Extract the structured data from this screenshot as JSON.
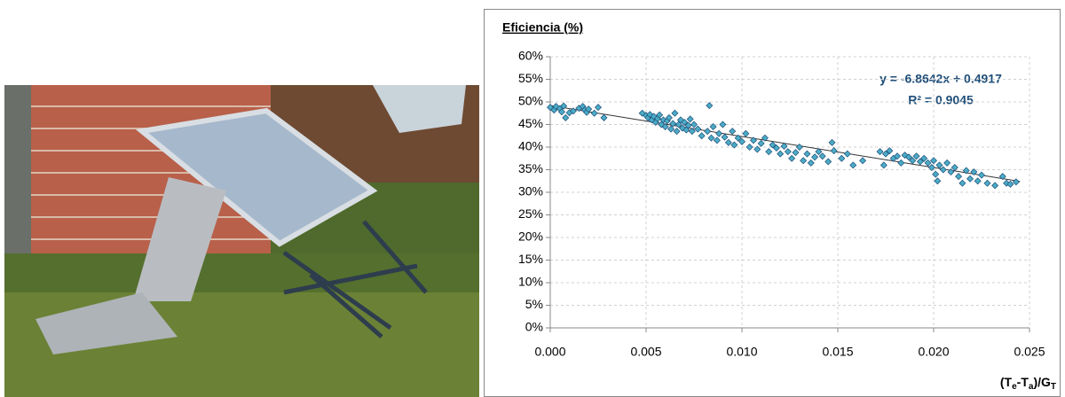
{
  "chart_data": {
    "type": "scatter",
    "title": "Eficiencia (%)",
    "x_label": [
      "(T",
      "e",
      "-T",
      "a",
      ")/G",
      "T"
    ],
    "annotations": [
      "y = -6.8642x + 0.4917",
      "R² = 0.9045"
    ],
    "color": "#4bacc6",
    "edge_color": "#1f4e79",
    "grid": true,
    "xlim": [
      0,
      0.025
    ],
    "ylim": [
      0,
      60
    ],
    "xticks": [
      {
        "value": 0,
        "label": "0.000"
      },
      0.005,
      {
        "value": 0.01,
        "label": "0.010"
      },
      0.015,
      {
        "value": 0.02,
        "label": "0.020"
      },
      0.025
    ],
    "yticks": [
      {
        "value": 0,
        "label": "0%"
      },
      {
        "value": 5,
        "label": "5%"
      },
      {
        "value": 10,
        "label": "10%"
      },
      {
        "value": 15,
        "label": "15%"
      },
      {
        "value": 20,
        "label": "20%"
      },
      {
        "value": 25,
        "label": "25%"
      },
      {
        "value": 30,
        "label": "30%"
      },
      {
        "value": 35,
        "label": "35%"
      },
      {
        "value": 40,
        "label": "40%"
      },
      {
        "value": 45,
        "label": "45%"
      },
      {
        "value": 50,
        "label": "50%"
      },
      {
        "value": 55,
        "label": "55%"
      },
      {
        "value": 60,
        "label": "60%"
      }
    ],
    "trendline": {
      "x": [
        0,
        0.0245
      ],
      "values": [
        49.2,
        32.4
      ]
    },
    "x": [
      0.0,
      0.0002,
      0.0003,
      0.0005,
      0.0006,
      0.0007,
      0.0008,
      0.001,
      0.0012,
      0.0015,
      0.0017,
      0.0018,
      0.0019,
      0.002,
      0.0023,
      0.0025,
      0.0028,
      0.0048,
      0.005,
      0.0051,
      0.0052,
      0.0053,
      0.0054,
      0.0055,
      0.0056,
      0.0057,
      0.0058,
      0.0059,
      0.006,
      0.0061,
      0.0062,
      0.0063,
      0.0064,
      0.0065,
      0.0066,
      0.0067,
      0.0068,
      0.0069,
      0.007,
      0.0071,
      0.0072,
      0.0073,
      0.0074,
      0.0075,
      0.0077,
      0.0079,
      0.0083,
      0.0082,
      0.0084,
      0.0085,
      0.0087,
      0.0088,
      0.009,
      0.0091,
      0.0093,
      0.0095,
      0.0096,
      0.0098,
      0.01,
      0.0102,
      0.0104,
      0.0106,
      0.0108,
      0.011,
      0.0112,
      0.0114,
      0.0116,
      0.0118,
      0.012,
      0.0122,
      0.0124,
      0.0126,
      0.0128,
      0.013,
      0.0132,
      0.0134,
      0.0136,
      0.0138,
      0.014,
      0.0142,
      0.0145,
      0.0147,
      0.0148,
      0.0152,
      0.0155,
      0.0158,
      0.0163,
      0.0172,
      0.0174,
      0.0175,
      0.0177,
      0.0179,
      0.0181,
      0.0183,
      0.0185,
      0.0187,
      0.0189,
      0.0191,
      0.0193,
      0.0195,
      0.0197,
      0.0199,
      0.02,
      0.0201,
      0.0202,
      0.0203,
      0.0205,
      0.0207,
      0.0209,
      0.0211,
      0.0213,
      0.0215,
      0.0217,
      0.0219,
      0.0221,
      0.0223,
      0.0225,
      0.0228,
      0.0232,
      0.0236,
      0.0238,
      0.024,
      0.0243
    ],
    "values": [
      48.8,
      48.2,
      49.0,
      48.5,
      47.8,
      49.1,
      46.5,
      47.6,
      48.0,
      48.6,
      49.0,
      48.2,
      47.7,
      48.4,
      47.5,
      48.8,
      46.5,
      47.5,
      47.0,
      46.5,
      47.2,
      46.0,
      46.8,
      45.5,
      46.3,
      47.1,
      45.0,
      46.0,
      44.5,
      45.8,
      46.5,
      44.0,
      45.2,
      47.5,
      43.5,
      45.0,
      46.0,
      44.2,
      45.5,
      43.8,
      44.8,
      46.2,
      43.5,
      45.0,
      44.0,
      42.5,
      49.2,
      43.5,
      42.0,
      44.5,
      41.5,
      43.0,
      45.0,
      42.2,
      41.0,
      43.5,
      40.5,
      42.0,
      41.2,
      43.0,
      40.0,
      41.5,
      39.5,
      40.8,
      42.0,
      39.0,
      40.5,
      39.8,
      38.5,
      40.2,
      39.0,
      37.5,
      38.8,
      40.0,
      37.0,
      38.5,
      36.5,
      37.8,
      39.0,
      38.0,
      36.8,
      41.0,
      39.2,
      37.5,
      38.5,
      36.0,
      37.0,
      39.0,
      36.0,
      38.5,
      39.2,
      37.5,
      38.0,
      36.5,
      38.2,
      37.8,
      37.0,
      38.0,
      36.8,
      37.5,
      36.5,
      35.5,
      37.0,
      34.0,
      32.5,
      36.0,
      35.0,
      36.5,
      34.5,
      35.5,
      33.5,
      32.0,
      34.8,
      33.0,
      34.5,
      32.5,
      33.8,
      32.0,
      31.5,
      33.5,
      32.0,
      31.8,
      32.3
    ]
  }
}
